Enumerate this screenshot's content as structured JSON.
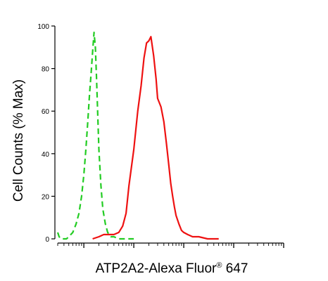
{
  "chart_data": {
    "type": "line",
    "xlabel": "ATP2A2-Alexa Fluor",
    "xlabel_sup": "®",
    "xlabel_suffix": " 647",
    "ylabel": "Cell Counts (% Max)",
    "x_scale": "log",
    "xlim": [
      0.3,
      10000
    ],
    "ylim": [
      0,
      100
    ],
    "y_ticks": [
      0,
      20,
      40,
      60,
      80,
      100
    ],
    "grid": false,
    "series": [
      {
        "style": "dashed",
        "color": "#22cc22",
        "x": [
          0.3,
          0.32,
          0.35,
          0.4,
          0.45,
          0.5,
          0.6,
          0.7,
          0.8,
          0.9,
          1.0,
          1.1,
          1.2,
          1.3,
          1.4,
          1.5,
          1.6,
          1.7,
          1.8,
          1.9,
          2.0,
          2.2,
          2.4,
          2.7,
          3.0,
          3.5,
          4.0,
          5.0,
          6.0,
          8.0,
          10.0
        ],
        "y": [
          3,
          1,
          0,
          0,
          0,
          1,
          3,
          7,
          12,
          20,
          30,
          42,
          55,
          68,
          78,
          88,
          97,
          90,
          75,
          58,
          42,
          25,
          14,
          7,
          3,
          1,
          1,
          0,
          0,
          0,
          0
        ]
      },
      {
        "style": "solid",
        "color": "#ee1111",
        "x": [
          1.5,
          2.0,
          2.5,
          3.0,
          4.0,
          5.0,
          6.0,
          7.0,
          8.0,
          10.0,
          12.0,
          14.0,
          16.0,
          18.0,
          20.0,
          22.0,
          25.0,
          28.0,
          30.0,
          35.0,
          40.0,
          45.0,
          50.0,
          55.0,
          60.0,
          65.0,
          70.0,
          80.0,
          90.0,
          100.0,
          120.0,
          150.0,
          200.0,
          300.0,
          500.0
        ],
        "y": [
          0,
          1,
          2,
          2,
          2,
          3,
          6,
          12,
          25,
          42,
          60,
          72,
          85,
          92,
          93,
          95,
          86,
          75,
          66,
          62,
          55,
          45,
          35,
          26,
          20,
          15,
          11,
          7,
          4,
          3,
          2,
          1,
          1,
          0,
          0
        ]
      }
    ]
  }
}
